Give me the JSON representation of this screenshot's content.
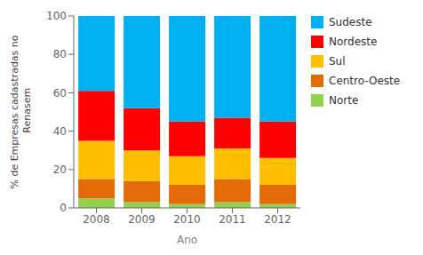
{
  "chart_data": {
    "type": "bar",
    "stacked": true,
    "categories": [
      "2008",
      "2009",
      "2010",
      "2011",
      "2012"
    ],
    "series": [
      {
        "name": "Norte",
        "color": "#92d050",
        "values": [
          5,
          3,
          2,
          3,
          2
        ]
      },
      {
        "name": "Centro-Oeste",
        "color": "#e36c09",
        "values": [
          10,
          11,
          10,
          12,
          10
        ]
      },
      {
        "name": "Sul",
        "color": "#ffbf00",
        "values": [
          20,
          16,
          15,
          16,
          14
        ]
      },
      {
        "name": "Nordeste",
        "color": "#ff0000",
        "values": [
          26,
          22,
          18,
          16,
          19
        ]
      },
      {
        "name": "Sudeste",
        "color": "#00b0f0",
        "values": [
          39,
          48,
          55,
          53,
          55
        ]
      }
    ],
    "xlabel": "Ano",
    "ylabel": "% de Empresas cadastradas  no\n Renasem",
    "ylim": [
      0,
      100
    ],
    "yticks": [
      0,
      20,
      40,
      60,
      80,
      100
    ],
    "grid": false,
    "legend": "right"
  }
}
